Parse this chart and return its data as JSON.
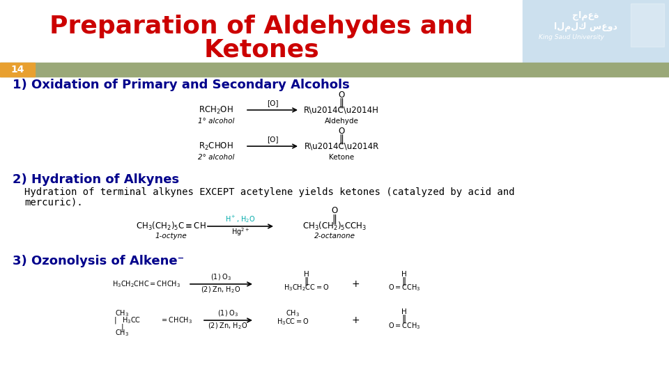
{
  "title_line1": "Preparation of Aldehydes and",
  "title_line2": "Ketones",
  "title_color": "#cc0000",
  "slide_number": "14",
  "slide_number_bg": "#e8a030",
  "header_bar_color": "#9aA878",
  "bg_color": "#ffffff",
  "logo_bg_color": "#cce0ee",
  "section1_title": "1) Oxidation of Primary and Secondary Alcohols",
  "section2_title": "2) Hydration of Alkynes",
  "section3_title": "3) Ozonolysis of Alkene⁻",
  "text_color_blue": "#00008B",
  "body_text_color": "#000000",
  "hydration_text1": "Hydration of terminal alkynes EXCEPT acetylene yields ketones (catalyzed by acid and",
  "hydration_text2": "mercuric).",
  "font_size_title": 26,
  "font_size_section": 13,
  "font_size_body": 10,
  "font_size_chem": 8.5,
  "font_size_label": 7.5
}
